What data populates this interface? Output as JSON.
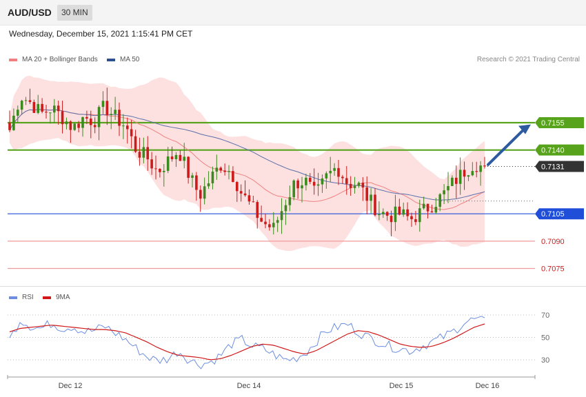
{
  "header": {
    "symbol": "AUD/USD",
    "timeframe": "30 MIN",
    "datetime": "Wednesday, December 15, 2021 1:15:41 PM CET",
    "credit": "Research © 2021 Trading Central"
  },
  "colors": {
    "up_candle": "#3a8a1e",
    "down_candle": "#cc1b1b",
    "bollinger_fill": "#fddcdc",
    "ma20": "#f08080",
    "ma50": "#5a6fa8",
    "resistance": "#57a41c",
    "support": "#1f4fd8",
    "support2": "#f29a9a",
    "current_price": "#333333",
    "arrow": "#2e5aa0",
    "rsi": "#6b8ee0",
    "rsi_ma": "#d01818"
  },
  "legend": {
    "ma20_label": "MA 20 + Bollinger Bands",
    "ma50_label": "MA 50",
    "rsi_label": "RSI",
    "rsi_ma_label": "9MA"
  },
  "chart_data": [
    {
      "type": "candlestick",
      "ylim": [
        0.7068,
        0.7183
      ],
      "price_levels": [
        {
          "label": "0.7155",
          "value": 0.7155,
          "kind": "resistance"
        },
        {
          "label": "0.7140",
          "value": 0.714,
          "kind": "resistance"
        },
        {
          "label": "0.7131",
          "value": 0.7131,
          "kind": "current"
        },
        {
          "label": "0.7105",
          "value": 0.7105,
          "kind": "support"
        },
        {
          "label": "0.7090",
          "value": 0.709,
          "kind": "support2"
        },
        {
          "label": "0.7075",
          "value": 0.7075,
          "kind": "support2"
        }
      ],
      "path_points": [
        0.7151,
        0.717,
        0.7166,
        0.716,
        0.7163,
        0.7158,
        0.7152,
        0.7158,
        0.7156,
        0.7164,
        0.7158,
        0.7153,
        0.714,
        0.7136,
        0.7128,
        0.7134,
        0.714,
        0.7126,
        0.7115,
        0.7124,
        0.7132,
        0.7128,
        0.7116,
        0.7108,
        0.71,
        0.7097,
        0.711,
        0.7122,
        0.7123,
        0.7115,
        0.7125,
        0.7131,
        0.7122,
        0.7121,
        0.7113,
        0.7106,
        0.7104,
        0.7105,
        0.7102,
        0.7106,
        0.711,
        0.7115,
        0.7122,
        0.7128,
        0.7133,
        0.713
      ]
    },
    {
      "type": "line",
      "ylim": [
        22,
        78
      ],
      "yticks": [
        30,
        50,
        70
      ],
      "series_rsi": [
        48,
        66,
        60,
        58,
        63,
        58,
        60,
        55,
        56,
        60,
        54,
        48,
        40,
        33,
        29,
        31,
        38,
        30,
        26,
        28,
        34,
        44,
        48,
        42,
        40,
        35,
        30,
        31,
        36,
        46,
        56,
        59,
        62,
        55,
        50,
        46,
        42,
        40,
        38,
        42,
        46,
        50,
        55,
        63,
        66,
        64
      ],
      "series_ma": [
        55,
        58,
        59,
        60,
        61,
        60,
        59,
        58,
        57,
        57,
        56,
        54,
        50,
        46,
        41,
        37,
        34,
        33,
        32,
        30,
        31,
        34,
        38,
        42,
        44,
        43,
        40,
        37,
        35,
        38,
        43,
        48,
        53,
        56,
        55,
        52,
        48,
        44,
        42,
        41,
        42,
        45,
        49,
        54,
        59,
        62
      ]
    }
  ],
  "xaxis": {
    "labels": [
      "Dec 12",
      "Dec 14",
      "Dec 15",
      "Dec 16"
    ]
  }
}
